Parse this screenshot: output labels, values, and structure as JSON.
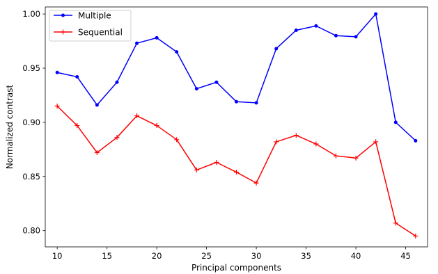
{
  "chart_data": {
    "type": "line",
    "title": "",
    "xlabel": "Principal components",
    "ylabel": "Normalized contrast",
    "xlim": [
      8.8,
      47.2
    ],
    "ylim": [
      0.785,
      1.0065
    ],
    "xticks": [
      10,
      15,
      20,
      25,
      30,
      35,
      40,
      45
    ],
    "xtick_labels": [
      "10",
      "15",
      "20",
      "25",
      "30",
      "35",
      "40",
      "45"
    ],
    "yticks": [
      0.8,
      0.85,
      0.9,
      0.95,
      1.0
    ],
    "ytick_labels": [
      "0.80",
      "0.85",
      "0.90",
      "0.95",
      "1.00"
    ],
    "grid": false,
    "legend_position": "top-left",
    "x": [
      10,
      12,
      14,
      16,
      18,
      20,
      22,
      24,
      26,
      28,
      30,
      32,
      34,
      36,
      38,
      40,
      42,
      44,
      46
    ],
    "series": [
      {
        "name": "Multiple",
        "color": "#0000ff",
        "marker": "dot",
        "values": [
          0.946,
          0.942,
          0.916,
          0.937,
          0.973,
          0.978,
          0.965,
          0.931,
          0.937,
          0.919,
          0.918,
          0.968,
          0.985,
          0.989,
          0.98,
          0.979,
          1.0,
          0.9,
          0.883
        ]
      },
      {
        "name": "Sequential",
        "color": "#ff0000",
        "marker": "plus",
        "values": [
          0.915,
          0.897,
          0.872,
          0.886,
          0.906,
          0.897,
          0.884,
          0.856,
          0.863,
          0.854,
          0.844,
          0.882,
          0.888,
          0.88,
          0.869,
          0.867,
          0.882,
          0.807,
          0.795
        ]
      }
    ]
  }
}
